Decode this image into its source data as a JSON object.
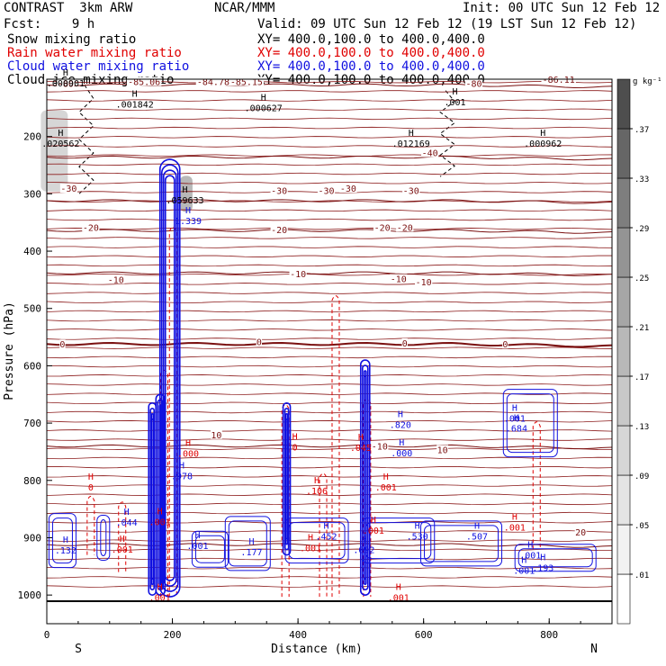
{
  "header": {
    "model": "CONTRAST  3km ARW",
    "center": "NCAR/MMM",
    "init": "Init: 00 UTC Sun 12 Feb 12",
    "fcst": "Fcst:    9 h",
    "valid": "Valid: 09 UTC Sun 12 Feb 12 (19 LST Sun 12 Feb 12)",
    "fields": [
      {
        "name": "Snow mixing ratio",
        "xy": "XY= 400.0,100.0 to 400.0,400.0",
        "color": "#000000"
      },
      {
        "name": "Rain water mixing ratio",
        "xy": "XY= 400.0,100.0 to 400.0,400.0",
        "color": "#e00000"
      },
      {
        "name": "Cloud water mixing ratio",
        "xy": "XY= 400.0,100.0 to 400.0,400.0",
        "color": "#1010e0"
      },
      {
        "name": "Cloud ice mixing ratio",
        "xy": "XY= 400.0,100.0 to 400.0,400.0",
        "color": "#000000"
      }
    ]
  },
  "chart_data": {
    "type": "heatmap",
    "title": "",
    "xlabel": "Distance (km)",
    "ylabel": "Pressure (hPa)",
    "xlim": [
      0,
      900
    ],
    "ylim": [
      1050,
      100
    ],
    "x_ticks": [
      0,
      200,
      400,
      600,
      800
    ],
    "y_ticks": [
      200,
      300,
      400,
      500,
      600,
      700,
      800,
      900,
      1000
    ],
    "x_end_labels": {
      "left": "S",
      "right": "N"
    },
    "colorbar": {
      "unit": "g kg⁻¹",
      "ticks": [
        ".01",
        ".05",
        ".09",
        ".13",
        ".17",
        ".21",
        ".25",
        ".29",
        ".33",
        ".37"
      ],
      "colors": [
        "#ffffff",
        "#f2f2f2",
        "#e4e4e4",
        "#d6d6d6",
        "#c8c8c8",
        "#b8b8b8",
        "#a6a6a6",
        "#949494",
        "#7e7e7e",
        "#666666",
        "#4e4e4e"
      ]
    },
    "temperature_isotherms": [
      {
        "value": "-80",
        "pressure": 110
      },
      {
        "value": "-40",
        "pressure": 236
      },
      {
        "value": "-30",
        "pressure": 312
      },
      {
        "value": "-20",
        "pressure": 364
      },
      {
        "value": "-10",
        "pressure": 438
      },
      {
        "value": "0",
        "pressure": 562,
        "bold": true
      },
      {
        "value": "10",
        "pressure": 740
      },
      {
        "value": "20",
        "pressure": 912
      }
    ],
    "temp_labels": [
      {
        "text": "-80",
        "x": 30,
        "p": 107
      },
      {
        "text": "-85.06",
        "x": 155,
        "p": 104
      },
      {
        "text": "-84.78",
        "x": 265,
        "p": 104
      },
      {
        "text": "-85.15",
        "x": 318,
        "p": 104
      },
      {
        "text": "-80",
        "x": 680,
        "p": 107
      },
      {
        "text": "-86.11",
        "x": 815,
        "p": 100
      },
      {
        "text": "-30",
        "x": 35,
        "p": 290
      },
      {
        "text": "-20",
        "x": 70,
        "p": 358
      },
      {
        "text": "-10",
        "x": 110,
        "p": 449
      },
      {
        "text": "0",
        "x": 25,
        "p": 562
      },
      {
        "text": "-40",
        "x": 610,
        "p": 228
      },
      {
        "text": "-30",
        "x": 480,
        "p": 290
      },
      {
        "text": "-30",
        "x": 445,
        "p": 294
      },
      {
        "text": "-30",
        "x": 370,
        "p": 294
      },
      {
        "text": "-30",
        "x": 580,
        "p": 294
      },
      {
        "text": "-20",
        "x": 370,
        "p": 362
      },
      {
        "text": "-20",
        "x": 570,
        "p": 358
      },
      {
        "text": "-20",
        "x": 534,
        "p": 358
      },
      {
        "text": "-10",
        "x": 400,
        "p": 439
      },
      {
        "text": "-10",
        "x": 560,
        "p": 448
      },
      {
        "text": "-10",
        "x": 600,
        "p": 453
      },
      {
        "text": "0",
        "x": 338,
        "p": 558
      },
      {
        "text": "0",
        "x": 570,
        "p": 560
      },
      {
        "text": "0",
        "x": 730,
        "p": 562
      },
      {
        "text": "10",
        "x": 270,
        "p": 720
      },
      {
        "text": "10",
        "x": 630,
        "p": 746
      },
      {
        "text": "-10",
        "x": 530,
        "p": 740
      },
      {
        "text": "20",
        "x": 850,
        "p": 890
      }
    ],
    "h_labels": [
      {
        "text": ".000901",
        "x": 30,
        "p": 105,
        "color": "#000000"
      },
      {
        "text": ".001842",
        "x": 140,
        "p": 142,
        "color": "#000000"
      },
      {
        "text": ".000627",
        "x": 345,
        "p": 148,
        "color": "#000000"
      },
      {
        "text": ".020562",
        "x": 22,
        "p": 210,
        "color": "#000000"
      },
      {
        "text": ".012169",
        "x": 580,
        "p": 210,
        "color": "#000000"
      },
      {
        "text": ".000962",
        "x": 790,
        "p": 210,
        "color": "#000000"
      },
      {
        "text": ".001",
        "x": 650,
        "p": 138,
        "color": "#000000"
      },
      {
        "text": ".059633",
        "x": 220,
        "p": 309,
        "color": "#000000"
      },
      {
        "text": "1.339",
        "x": 225,
        "p": 345,
        "color": "#1010e0"
      },
      {
        "text": "0",
        "x": 395,
        "p": 740,
        "color": "#e00000"
      },
      {
        "text": "0",
        "x": 70,
        "p": 810,
        "color": "#e00000"
      },
      {
        "text": ".000",
        "x": 225,
        "p": 751,
        "color": "#e00000"
      },
      {
        "text": ".045",
        "x": 500,
        "p": 741,
        "color": "#e00000"
      },
      {
        "text": ".106",
        "x": 430,
        "p": 816,
        "color": "#e00000"
      },
      {
        "text": ".001",
        "x": 540,
        "p": 810,
        "color": "#e00000"
      },
      {
        "text": ".001",
        "x": 745,
        "p": 880,
        "color": "#e00000"
      },
      {
        "text": ".001",
        "x": 240,
        "p": 912,
        "color": "#1010e0"
      },
      {
        "text": ".001",
        "x": 420,
        "p": 916,
        "color": "#e00000"
      },
      {
        "text": ".820",
        "x": 563,
        "p": 701,
        "color": "#1010e0"
      },
      {
        "text": ".000",
        "x": 565,
        "p": 750,
        "color": "#1010e0"
      },
      {
        "text": ".978",
        "x": 215,
        "p": 790,
        "color": "#1010e0"
      },
      {
        "text": ".044",
        "x": 127,
        "p": 871,
        "color": "#1010e0"
      },
      {
        "text": ".132",
        "x": 30,
        "p": 920,
        "color": "#1010e0"
      },
      {
        "text": ".177",
        "x": 326,
        "p": 923,
        "color": "#1010e0"
      },
      {
        "text": ".452",
        "x": 445,
        "p": 895,
        "color": "#1010e0"
      },
      {
        "text": ".092",
        "x": 505,
        "p": 919,
        "color": "#1010e0"
      },
      {
        "text": ".530",
        "x": 590,
        "p": 895,
        "color": "#1010e0"
      },
      {
        "text": ".507",
        "x": 685,
        "p": 895,
        "color": "#1010e0"
      },
      {
        "text": ".193",
        "x": 790,
        "p": 950,
        "color": "#1010e0"
      },
      {
        "text": ".684",
        "x": 748,
        "p": 707,
        "color": "#1010e0"
      },
      {
        "text": ".001",
        "x": 180,
        "p": 1002,
        "color": "#e00000"
      },
      {
        "text": ".001",
        "x": 560,
        "p": 1002,
        "color": "#e00000"
      },
      {
        "text": ".001",
        "x": 745,
        "p": 690,
        "color": "#1010e0"
      },
      {
        "text": ".001",
        "x": 770,
        "p": 928,
        "color": "#1010e0"
      },
      {
        "text": ".001",
        "x": 760,
        "p": 955,
        "color": "#1010e0"
      },
      {
        "text": ".001",
        "x": 520,
        "p": 885,
        "color": "#e00000"
      },
      {
        "text": ".001",
        "x": 180,
        "p": 870,
        "color": "#e00000"
      },
      {
        "text": ".001",
        "x": 120,
        "p": 918,
        "color": "#e00000"
      }
    ],
    "cloud_water_columns": [
      {
        "x": 196,
        "top": 240,
        "bottom": 1003,
        "width": 22
      },
      {
        "x": 181,
        "top": 650,
        "bottom": 1000,
        "width": 10
      },
      {
        "x": 168,
        "top": 665,
        "bottom": 1000,
        "width": 8
      },
      {
        "x": 382,
        "top": 665,
        "bottom": 930,
        "width": 8
      },
      {
        "x": 507,
        "top": 590,
        "bottom": 1000,
        "width": 10
      }
    ],
    "cloud_water_blobs": [
      {
        "x": 25,
        "p": 905,
        "w": 30,
        "h": 60
      },
      {
        "x": 90,
        "p": 900,
        "w": 14,
        "h": 50
      },
      {
        "x": 260,
        "p": 920,
        "w": 40,
        "h": 40
      },
      {
        "x": 320,
        "p": 910,
        "w": 50,
        "h": 60
      },
      {
        "x": 430,
        "p": 905,
        "w": 70,
        "h": 50
      },
      {
        "x": 560,
        "p": 905,
        "w": 80,
        "h": 50
      },
      {
        "x": 660,
        "p": 910,
        "w": 90,
        "h": 50
      },
      {
        "x": 770,
        "p": 700,
        "w": 60,
        "h": 75
      },
      {
        "x": 810,
        "p": 935,
        "w": 90,
        "h": 30
      }
    ],
    "rain_columns": [
      {
        "x": 201,
        "top": 350,
        "bottom": 1003
      },
      {
        "x": 187,
        "top": 600,
        "bottom": 1003
      },
      {
        "x": 380,
        "top": 660,
        "bottom": 1003
      },
      {
        "x": 460,
        "top": 470,
        "bottom": 1003
      },
      {
        "x": 440,
        "top": 780,
        "bottom": 1003
      },
      {
        "x": 510,
        "top": 650,
        "bottom": 1003
      },
      {
        "x": 780,
        "top": 690,
        "bottom": 920
      },
      {
        "x": 70,
        "top": 820,
        "bottom": 930
      },
      {
        "x": 120,
        "top": 830,
        "bottom": 960
      }
    ],
    "snow_shading": [
      {
        "x": 12,
        "p": 225,
        "w": 30,
        "h": 90,
        "level": 3
      },
      {
        "x": 222,
        "p": 300,
        "w": 14,
        "h": 40,
        "level": 5
      }
    ],
    "snow_contours": [
      {
        "x": 60,
        "top": 110,
        "bottom": 300
      },
      {
        "x": 635,
        "top": 120,
        "bottom": 270
      }
    ]
  }
}
